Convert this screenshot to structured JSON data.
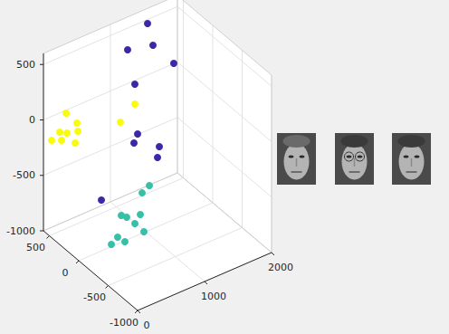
{
  "chart_data": {
    "type": "scatter3d",
    "xlim": [
      0,
      2000
    ],
    "ylim": [
      -1000,
      600
    ],
    "zlim": [
      -1000,
      600
    ],
    "xticks": [
      0,
      1000,
      2000
    ],
    "yticks": [
      -1000,
      -500,
      0,
      500
    ],
    "zticks": [
      -1000,
      -500,
      0,
      500
    ],
    "grid": true,
    "marker": "circle",
    "series": [
      {
        "color": "#3e26a8",
        "x": [
          1512,
          1116,
          1354,
          1524,
          943,
          703,
          649,
          1027,
          1000,
          162
        ],
        "y": [
          552,
          440,
          280,
          120,
          120,
          -200,
          -200,
          -200,
          -200,
          -200
        ],
        "z": [
          496,
          413,
          464,
          328,
          291,
          49,
          -18,
          -150,
          -241,
          -406
        ]
      },
      {
        "color": "#f9fb0e",
        "x": [
          268,
          51,
          173,
          430,
          443,
          281,
          200,
          403,
          586,
          803
        ],
        "y": [
          520,
          520,
          520,
          520,
          520,
          520,
          520,
          520,
          -40,
          -40
        ],
        "z": [
          27,
          -162,
          -119,
          -105,
          -182,
          -156,
          -200,
          -277,
          114,
          221
        ]
      },
      {
        "color": "#37c0a8",
        "x": [
          597,
          489,
          178,
          259,
          381,
          462,
          516,
          232,
          124,
          30
        ],
        "y": [
          -520,
          -520,
          -520,
          -520,
          -520,
          -520,
          -520,
          -520,
          -520,
          -520
        ],
        "z": [
          -245,
          -283,
          -405,
          -443,
          -531,
          -471,
          -640,
          -656,
          -587,
          -628
        ]
      }
    ]
  }
}
